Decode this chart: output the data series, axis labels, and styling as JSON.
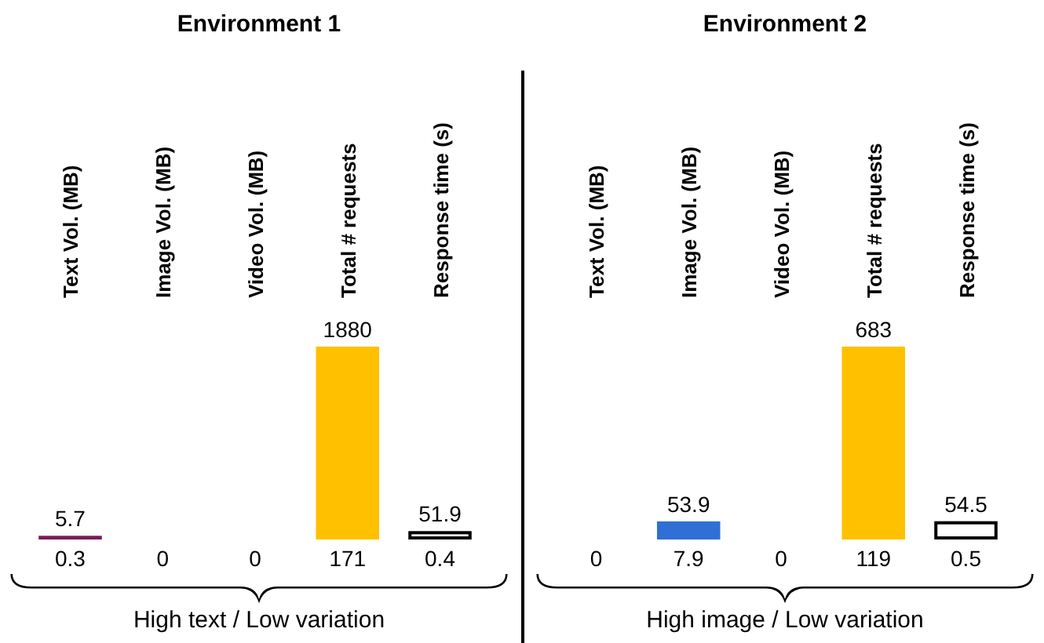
{
  "chart_data": [
    {
      "type": "bar",
      "title": "Environment 1",
      "xlabel": "High text / Low variation",
      "categories": [
        "Text Vol. (MB)",
        "Image Vol. (MB)",
        "Video Vol. (MB)",
        "Total # requests",
        "Response time (s)"
      ],
      "values": [
        5.7,
        0,
        0,
        1880,
        51.9
      ],
      "colors": [
        "#7b1a5a",
        "#2f6fd6",
        "#147a6a",
        "#ffc000",
        "#ffffff"
      ],
      "value_labels": [
        "5.7",
        null,
        null,
        "1880",
        "51.9"
      ],
      "annotations": [
        "0.3",
        "0",
        "0",
        "171",
        "0.4"
      ]
    },
    {
      "type": "bar",
      "title": "Environment 2",
      "xlabel": "High image / Low variation",
      "categories": [
        "Text Vol. (MB)",
        "Image Vol. (MB)",
        "Video Vol. (MB)",
        "Total # requests",
        "Response time (s)"
      ],
      "values": [
        0,
        53.9,
        0,
        683,
        54.5
      ],
      "colors": [
        "#7b1a5a",
        "#2f6fd6",
        "#147a6a",
        "#ffc000",
        "#ffffff"
      ],
      "value_labels": [
        null,
        "53.9",
        null,
        "683",
        "54.5"
      ],
      "annotations": [
        "0",
        "7.9",
        "0",
        "119",
        "0.5"
      ]
    }
  ]
}
